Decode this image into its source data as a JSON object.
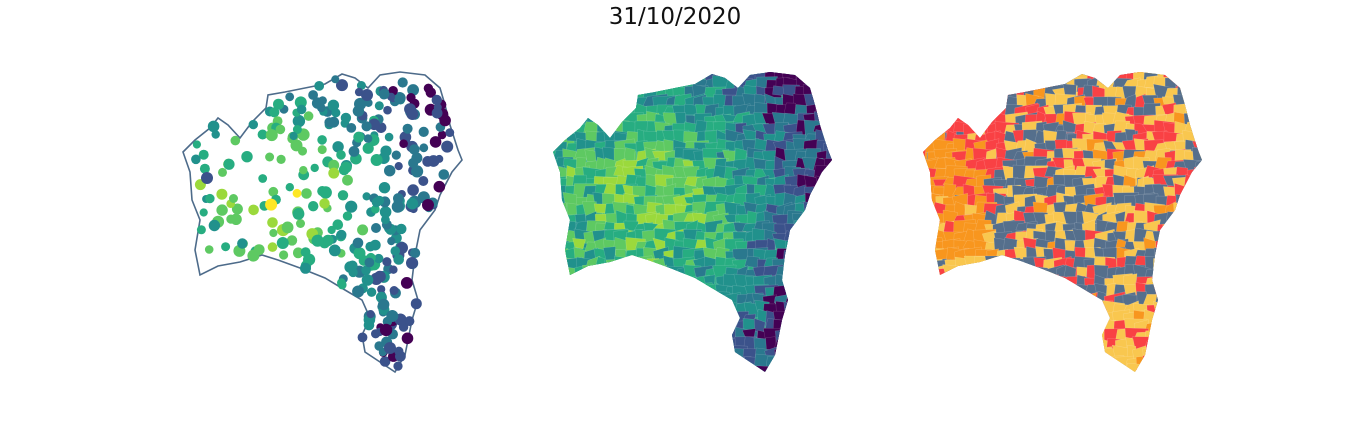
{
  "title": "31/10/2020",
  "colors": {
    "outline": "#4d6b8a",
    "viridis": [
      "#440154",
      "#3b528b",
      "#2a788e",
      "#21918c",
      "#27ad81",
      "#5ec962",
      "#9bd93c",
      "#fde725"
    ],
    "categorical": {
      "blue_grey": "#556f8c",
      "red": "#f94144",
      "orange": "#f8961e",
      "yellow": "#f9c74f"
    }
  },
  "panels": [
    {
      "name": "point-map",
      "kind": "scatter-points"
    },
    {
      "name": "choropleth-map",
      "kind": "continuous-choropleth"
    },
    {
      "name": "categorical-map",
      "kind": "categorical-choropleth"
    }
  ]
}
